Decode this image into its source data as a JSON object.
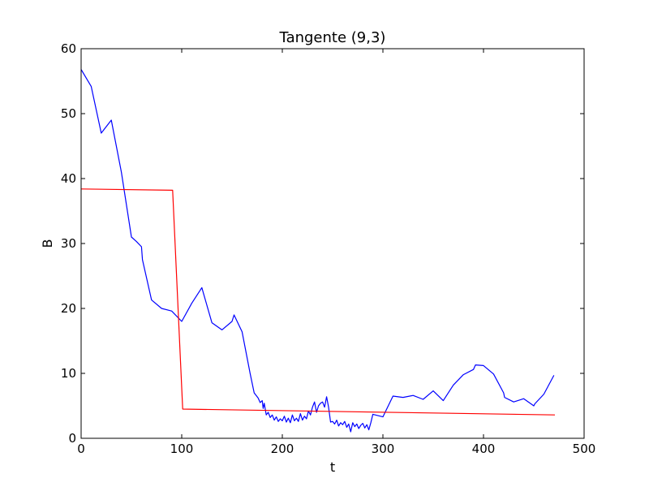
{
  "chart_data": {
    "type": "line",
    "title": "Tangente (9,3)",
    "xlabel": "t",
    "ylabel": "B",
    "xlim": [
      0,
      500
    ],
    "ylim": [
      0,
      60
    ],
    "x_ticks": [
      "0",
      "100",
      "200",
      "300",
      "400",
      "500"
    ],
    "y_ticks": [
      "0",
      "10",
      "20",
      "30",
      "40",
      "50",
      "60"
    ],
    "grid": false,
    "legend": "none",
    "series": [
      {
        "color": "#0000ff",
        "x": [
          0,
          10,
          20,
          30,
          35,
          40,
          45,
          50,
          55,
          60,
          61,
          70,
          80,
          90,
          100,
          110,
          120,
          130,
          140,
          150,
          152,
          160,
          168,
          172,
          176,
          178,
          180,
          181,
          182,
          184,
          186,
          188,
          190,
          192,
          194,
          196,
          198,
          200,
          202,
          204,
          206,
          208,
          210,
          212,
          214,
          216,
          218,
          220,
          222,
          224,
          226,
          228,
          230,
          232,
          234,
          236,
          238,
          240,
          242,
          244,
          246,
          248,
          250,
          252,
          254,
          256,
          258,
          260,
          262,
          264,
          266,
          268,
          270,
          272,
          274,
          276,
          278,
          280,
          282,
          284,
          286,
          288,
          290,
          300,
          310,
          320,
          330,
          340,
          350,
          360,
          370,
          380,
          390,
          392,
          400,
          410,
          420,
          421,
          430,
          440,
          450,
          451,
          460,
          470
        ],
        "y": [
          56.8,
          54.2,
          47.0,
          49.0,
          45.0,
          41.0,
          36.0,
          31.0,
          30.3,
          29.5,
          27.5,
          21.3,
          20.0,
          19.6,
          18.0,
          20.8,
          23.2,
          17.8,
          16.7,
          18.0,
          19.0,
          16.4,
          10.0,
          7.0,
          6.2,
          5.5,
          5.8,
          4.6,
          5.4,
          3.6,
          4.0,
          3.2,
          3.6,
          2.8,
          3.3,
          2.6,
          3.0,
          2.7,
          3.4,
          2.5,
          3.1,
          2.4,
          3.6,
          2.7,
          3.1,
          2.6,
          3.8,
          2.8,
          3.4,
          3.0,
          4.2,
          3.6,
          4.8,
          5.6,
          4.0,
          5.0,
          5.4,
          5.6,
          4.8,
          6.4,
          4.8,
          2.5,
          2.6,
          2.2,
          2.8,
          1.9,
          2.4,
          2.1,
          2.6,
          1.7,
          2.2,
          1.0,
          2.4,
          1.8,
          2.2,
          1.5,
          2.0,
          2.3,
          1.6,
          2.1,
          1.3,
          2.4,
          3.7,
          3.3,
          6.5,
          6.3,
          6.6,
          6.0,
          7.3,
          5.8,
          8.2,
          9.8,
          10.6,
          11.3,
          11.2,
          9.9,
          7.0,
          6.3,
          5.6,
          6.1,
          5.0,
          5.3,
          6.8,
          9.7
        ]
      },
      {
        "color": "#ff0000",
        "x": [
          0,
          91,
          101,
          471
        ],
        "y": [
          38.4,
          38.2,
          4.5,
          3.6
        ]
      }
    ]
  }
}
